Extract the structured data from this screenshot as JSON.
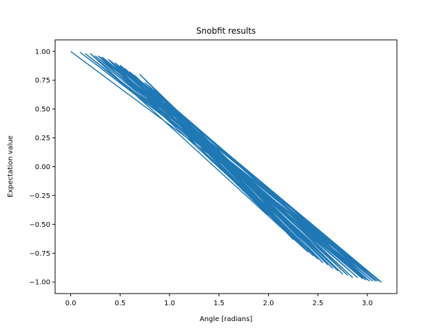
{
  "chart_data": {
    "type": "line",
    "title": "Snobfit results",
    "xlabel": "Angle [radians]",
    "ylabel": "Expectation value",
    "xlim": [
      -0.157,
      3.299
    ],
    "ylim": [
      -1.1,
      1.1
    ],
    "xticks": [
      0.0,
      0.5,
      1.0,
      1.5,
      2.0,
      2.5,
      3.0
    ],
    "xtick_labels": [
      "0.0",
      "0.5",
      "1.0",
      "1.5",
      "2.0",
      "2.5",
      "3.0"
    ],
    "yticks": [
      1.0,
      0.75,
      0.5,
      0.25,
      0.0,
      -0.25,
      -0.5,
      -0.75,
      -1.0
    ],
    "ytick_labels": [
      "1.00",
      "0.75",
      "0.50",
      "0.25",
      "0.00",
      "−0.25",
      "−0.50",
      "−0.75",
      "−1.00"
    ],
    "grid": false,
    "series": [
      {
        "color": "#1f77b4",
        "x": [
          0.0,
          3.14,
          0.1,
          3.1,
          0.15,
          3.0,
          0.25,
          3.12,
          0.3,
          2.95,
          0.35,
          2.9,
          0.5,
          2.8,
          0.7,
          2.6,
          0.8,
          3.05,
          0.28,
          2.5,
          0.95,
          2.2,
          1.15,
          2.0,
          0.4,
          3.14,
          0.6,
          2.7,
          1.05,
          2.4,
          0.2,
          2.98,
          0.45,
          2.65,
          0.9,
          2.1,
          1.25,
          2.3,
          0.55,
          2.85,
          0.75,
          3.08,
          0.32,
          2.55,
          1.1,
          2.25,
          0.65,
          2.75,
          0.85,
          2.45,
          1.0,
          3.02,
          0.38,
          2.35,
          1.2,
          2.15,
          0.5,
          3.14
        ],
        "y": [
          1.0,
          -1.0,
          0.99,
          -0.99,
          0.98,
          -0.98,
          0.96,
          -0.99,
          0.95,
          -0.97,
          0.93,
          -0.96,
          0.87,
          -0.94,
          0.8,
          -0.85,
          0.69,
          -0.99,
          0.96,
          -0.8,
          0.55,
          -0.58,
          0.42,
          -0.42,
          0.92,
          -1.0,
          0.82,
          -0.9,
          0.5,
          -0.74,
          0.98,
          -0.98,
          0.9,
          -0.88,
          0.62,
          -0.5,
          0.32,
          -0.66,
          0.85,
          -0.96,
          0.73,
          -0.99,
          0.95,
          -0.83,
          0.45,
          -0.63,
          0.79,
          -0.93,
          0.66,
          -0.77,
          0.54,
          -0.99,
          0.93,
          -0.7,
          0.36,
          -0.54,
          0.88,
          -1.0
        ]
      }
    ]
  }
}
